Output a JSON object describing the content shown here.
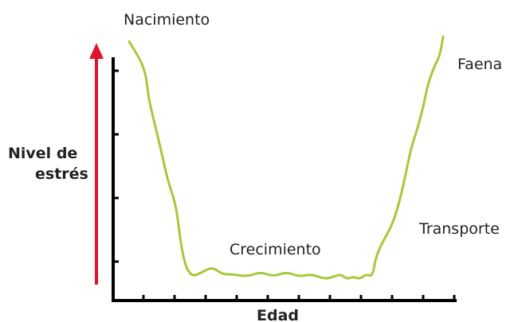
{
  "chart_data": {
    "type": "line",
    "title": "",
    "xlabel": "Edad",
    "ylabel_lines": [
      "Nivel de",
      "estrés"
    ],
    "series": [
      {
        "color": "#a6c93a",
        "points": [
          [
            0.0,
            0.98
          ],
          [
            0.05,
            0.87
          ],
          [
            0.06,
            0.75
          ],
          [
            0.08,
            0.64
          ],
          [
            0.1,
            0.53
          ],
          [
            0.12,
            0.41
          ],
          [
            0.14,
            0.33
          ],
          [
            0.15,
            0.27
          ],
          [
            0.16,
            0.16
          ],
          [
            0.17,
            0.09
          ],
          [
            0.18,
            0.04
          ],
          [
            0.2,
            0.01
          ],
          [
            0.23,
            0.03
          ],
          [
            0.26,
            0.05
          ],
          [
            0.29,
            0.02
          ],
          [
            0.32,
            0.02
          ],
          [
            0.37,
            0.01
          ],
          [
            0.41,
            0.03
          ],
          [
            0.45,
            0.01
          ],
          [
            0.49,
            0.03
          ],
          [
            0.53,
            0.01
          ],
          [
            0.57,
            0.02
          ],
          [
            0.61,
            0.0
          ],
          [
            0.64,
            0.01
          ],
          [
            0.66,
            0.02
          ],
          [
            0.68,
            0.0
          ],
          [
            0.7,
            0.01
          ],
          [
            0.72,
            0.0
          ],
          [
            0.74,
            0.02
          ],
          [
            0.76,
            0.01
          ],
          [
            0.77,
            0.09
          ],
          [
            0.79,
            0.15
          ],
          [
            0.82,
            0.22
          ],
          [
            0.84,
            0.3
          ],
          [
            0.86,
            0.41
          ],
          [
            0.88,
            0.54
          ],
          [
            0.9,
            0.62
          ],
          [
            0.92,
            0.72
          ],
          [
            0.93,
            0.79
          ],
          [
            0.95,
            0.87
          ],
          [
            0.97,
            0.92
          ],
          [
            0.98,
            1.0
          ]
        ]
      }
    ],
    "annotations": [
      "Nacimiento",
      "Crecimiento",
      "Transporte",
      "Faena"
    ],
    "y_tick_count": 4,
    "x_tick_count": 11,
    "axis_color": "#000000",
    "arrow_color": "#e0142a",
    "text_color": "#222222"
  }
}
